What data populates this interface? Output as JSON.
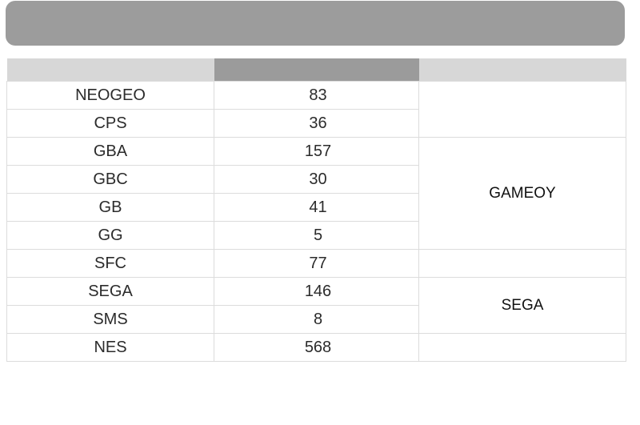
{
  "table": {
    "rows": [
      {
        "system": "NEOGEO",
        "count": "83"
      },
      {
        "system": "CPS",
        "count": "36"
      },
      {
        "system": "GBA",
        "count": "157"
      },
      {
        "system": "GBC",
        "count": "30"
      },
      {
        "system": "GB",
        "count": "41"
      },
      {
        "system": "GG",
        "count": "5"
      },
      {
        "system": "SFC",
        "count": "77"
      },
      {
        "system": "SEGA",
        "count": "146"
      },
      {
        "system": "SMS",
        "count": "8"
      },
      {
        "system": "NES",
        "count": "568"
      }
    ],
    "groups": {
      "gameboy_label": "GAMEOY",
      "sega_label": "SEGA"
    }
  },
  "colors": {
    "banner": "#9c9c9c",
    "header_side": "#d7d7d7",
    "header_middle": "#9b9b9b",
    "grid_line": "#dcdcdc"
  }
}
